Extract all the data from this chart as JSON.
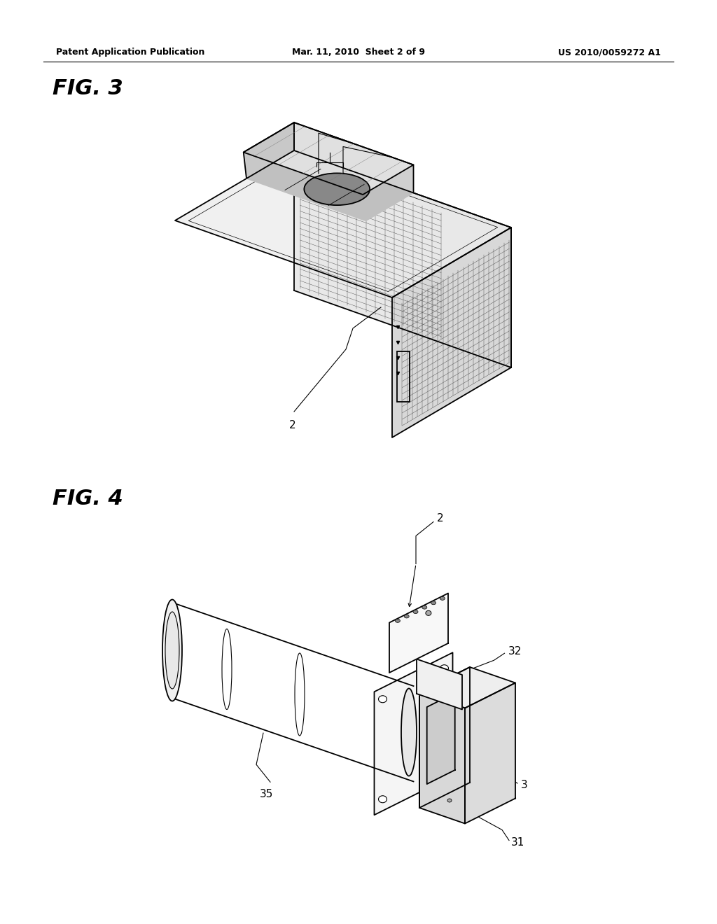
{
  "bg_color": "#ffffff",
  "header_left": "Patent Application Publication",
  "header_mid": "Mar. 11, 2010  Sheet 2 of 9",
  "header_right": "US 2010/0059272 A1",
  "fig3_label": "FIG. 3",
  "fig4_label": "FIG. 4",
  "header_fontsize": 9,
  "fig_label_fontsize": 22,
  "lw_main": 1.3,
  "lw_thin": 0.6,
  "lw_hair": 0.35
}
